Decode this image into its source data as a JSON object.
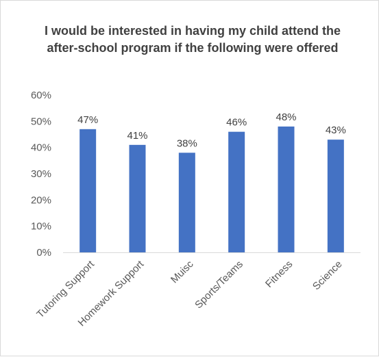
{
  "chart_data": {
    "type": "bar",
    "title": "I would be interested in having my child attend the after-school program if the following were offered",
    "categories": [
      "Tutoring Support",
      "Homework Support",
      "Muisc",
      "Sports/Teams",
      "Fitness",
      "Science"
    ],
    "values": [
      0.47,
      0.41,
      0.38,
      0.46,
      0.48,
      0.43
    ],
    "data_labels": [
      "47%",
      "41%",
      "38%",
      "46%",
      "48%",
      "43%"
    ],
    "y_ticks": [
      "0%",
      "10%",
      "20%",
      "30%",
      "40%",
      "50%",
      "60%"
    ],
    "ylim": [
      0,
      0.6
    ],
    "grid": false,
    "legend": "none",
    "bar_color": "#4472C4",
    "axis_color": "#d9d9d9"
  }
}
